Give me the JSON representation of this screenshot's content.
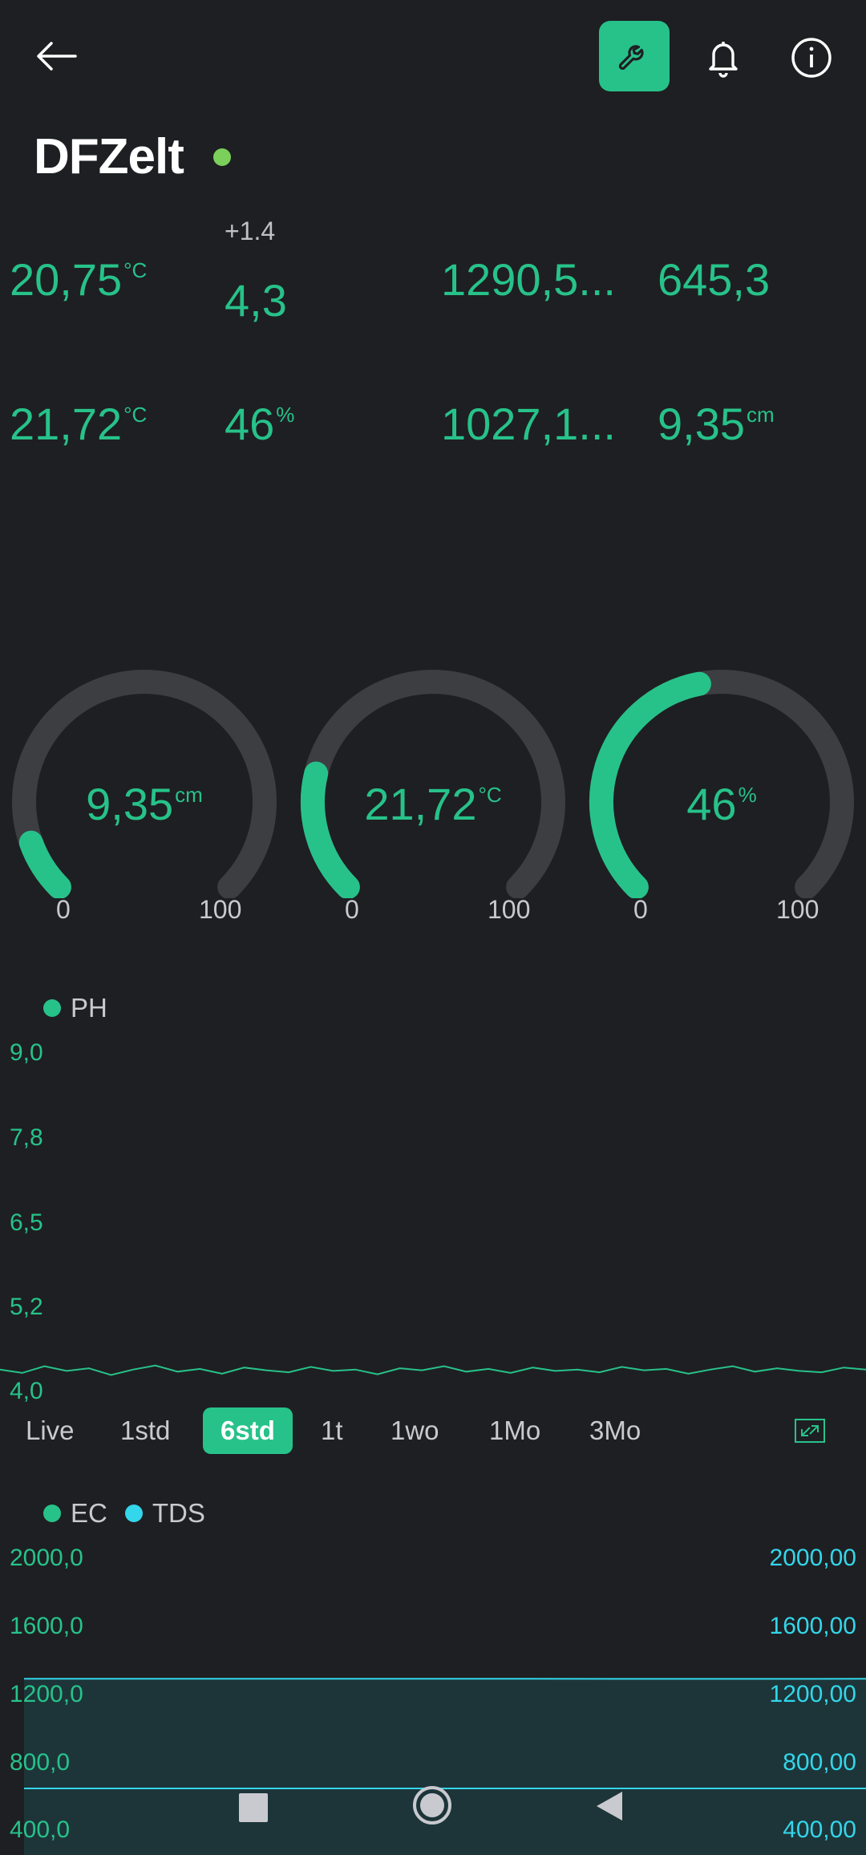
{
  "header": {
    "title": "DFZelt",
    "icons": [
      "back-arrow-icon",
      "wrench-icon",
      "bell-icon",
      "info-icon"
    ],
    "status_color": "#7ad05a"
  },
  "values": {
    "row1": {
      "air_temp": {
        "value": "20,75",
        "unit": "°C"
      },
      "ph": {
        "delta": "+1.4",
        "value": "4,3"
      },
      "ec": {
        "value": "1290,5..."
      },
      "tds": {
        "value": "645,3"
      }
    },
    "row2": {
      "water_temp": {
        "value": "21,72",
        "unit": "°C"
      },
      "humidity": {
        "value": "46",
        "unit": "%"
      },
      "pressure": {
        "value": "1027,1..."
      },
      "level": {
        "value": "9,35",
        "unit": "cm"
      }
    }
  },
  "gauges": [
    {
      "value": "9,35",
      "unit": "cm",
      "fraction": 0.0935,
      "min": "0",
      "max": "100"
    },
    {
      "value": "21,72",
      "unit": "°C",
      "fraction": 0.2172,
      "min": "0",
      "max": "100"
    },
    {
      "value": "46",
      "unit": "%",
      "fraction": 0.46,
      "min": "0",
      "max": "100"
    }
  ],
  "ph_chart": {
    "legend": "PH",
    "y_ticks": [
      "9,0",
      "7,8",
      "6,5",
      "5,2",
      "4,0"
    ]
  },
  "range_tabs": [
    "Live",
    "1std",
    "6std",
    "1t",
    "1wo",
    "1Mo",
    "3Mo"
  ],
  "active_range": "6std",
  "ec_chart": {
    "legend_ec": "EC",
    "legend_tds": "TDS",
    "left_ticks": [
      "2000,0",
      "1600,0",
      "1200,0",
      "800,0",
      "400,0"
    ],
    "right_ticks": [
      "2000,00",
      "1600,00",
      "1200,00",
      "800,00",
      "400,00"
    ]
  },
  "chart_data": [
    {
      "type": "line",
      "ylim": [
        4.0,
        9.0
      ],
      "series": [
        {
          "name": "PH",
          "values": [
            4.3,
            4.25,
            4.35,
            4.28,
            4.32,
            4.22,
            4.3,
            4.36,
            4.27,
            4.31,
            4.24,
            4.33,
            4.29,
            4.26,
            4.34,
            4.28,
            4.3,
            4.23,
            4.32,
            4.29,
            4.35,
            4.27,
            4.31,
            4.25,
            4.33,
            4.28,
            4.3,
            4.26,
            4.34,
            4.29,
            4.31,
            4.24,
            4.3,
            4.35,
            4.27,
            4.32,
            4.28,
            4.26,
            4.33,
            4.3
          ]
        }
      ]
    },
    {
      "type": "area",
      "ylim": [
        400,
        2000
      ],
      "series": [
        {
          "name": "EC",
          "values": [
            1290.5,
            1290.5,
            1290.4,
            1290.5,
            1290.3,
            1290.5
          ]
        },
        {
          "name": "TDS",
          "values": [
            645.3,
            645.3,
            645.2,
            645.3,
            645.2,
            645.3
          ]
        }
      ]
    }
  ],
  "colors": {
    "accent": "#27c28a",
    "tds": "#33d6ea",
    "background": "#1e1f22",
    "track": "#3d3e42"
  },
  "nav": [
    "square-icon",
    "circle-home-icon",
    "triangle-back-icon"
  ]
}
